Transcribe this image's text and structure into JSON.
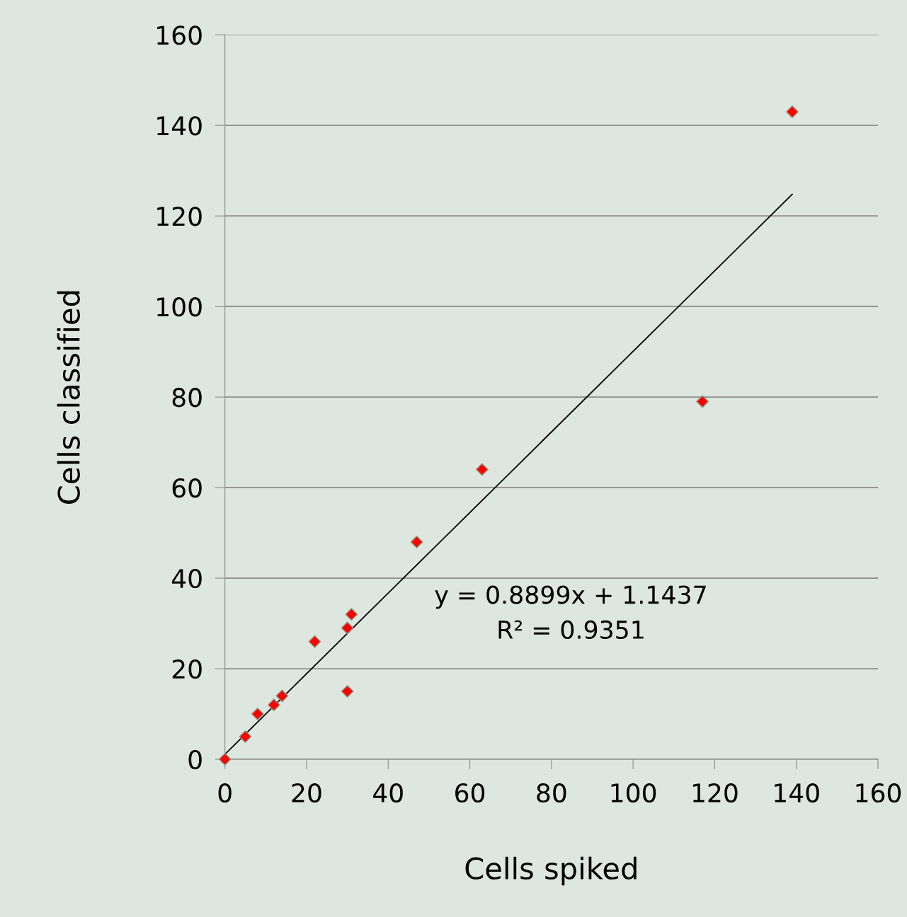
{
  "chart_data": {
    "type": "scatter",
    "xlabel": "Cells spiked",
    "ylabel": "Cells classified",
    "xlim": [
      0,
      160
    ],
    "xticks": [
      0,
      20,
      40,
      60,
      80,
      100,
      120,
      140,
      160
    ],
    "ylim": [
      0,
      160
    ],
    "yticks": [
      0,
      20,
      40,
      60,
      80,
      100,
      120,
      140,
      160
    ],
    "grid": "y",
    "marker": "diamond",
    "legend": false,
    "series": [
      {
        "color": "#ff0000",
        "x": [
          0,
          5,
          8,
          12,
          14,
          22,
          30,
          31,
          30,
          47,
          63,
          117,
          139
        ],
        "values": [
          0,
          5,
          10,
          12,
          14,
          26,
          29,
          32,
          15,
          48,
          64,
          79,
          143
        ]
      },
      {
        "type": "line",
        "marker": "none",
        "color": "#000000",
        "x": [
          0,
          139
        ],
        "values": [
          1.1,
          124.8
        ]
      }
    ],
    "annotations": [
      "y = 0.8899x + 1.1437\nR² = 0.9351"
    ]
  }
}
